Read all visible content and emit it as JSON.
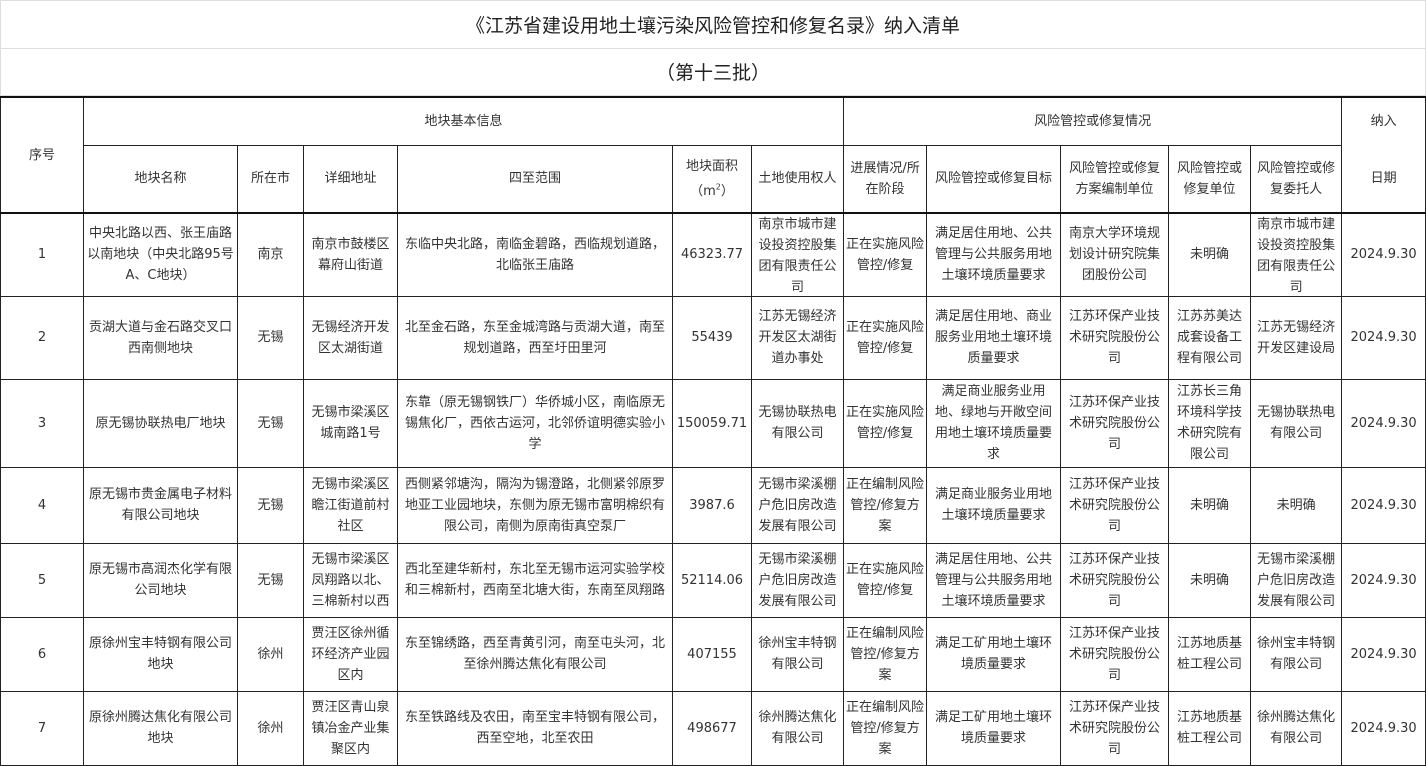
{
  "title": "《江苏省建设用地土壤污染风险管控和修复名录》纳入清单",
  "subtitle": "（第十三批）",
  "header": {
    "seq": "序号",
    "group_basic": "地块基本信息",
    "group_risk": "风险管控或修复情况",
    "include_top": "纳入",
    "include_bottom": "日期",
    "columns": [
      "地块名称",
      "所在市",
      "详细地址",
      "四至范围",
      "地块面积",
      "（m²）",
      "土地使用权人",
      "进展情况/所在阶段",
      "风险管控或修复目标",
      "风险管控或修复方案编制单位",
      "风险管控或修复单位",
      "风险管控或修复委托人"
    ]
  },
  "rows": [
    [
      "1",
      "中央北路以西、张王庙路以南地块（中央北路95号A、C地块）",
      "南京",
      "南京市鼓楼区幕府山街道",
      "东临中央北路，南临金碧路，西临规划道路，北临张王庙路",
      "46323.77",
      "南京市城市建设投资控股集团有限责任公司",
      "正在实施风险管控/修复",
      "满足居住用地、公共管理与公共服务用地土壤环境质量要求",
      "南京大学环境规划设计研究院集团股份公司",
      "未明确",
      "南京市城市建设投资控股集团有限责任公司",
      "2024.9.30"
    ],
    [
      "2",
      "贡湖大道与金石路交叉口西南侧地块",
      "无锡",
      "无锡经济开发区太湖街道",
      "北至金石路，东至金城湾路与贡湖大道，南至规划道路，西至圩田里河",
      "55439",
      "江苏无锡经济开发区太湖街道办事处",
      "正在实施风险管控/修复",
      "满足居住用地、商业服务业用地土壤环境质量要求",
      "江苏环保产业技术研究院股份公司",
      "江苏苏美达成套设备工程有限公司",
      "江苏无锡经济开发区建设局",
      "2024.9.30"
    ],
    [
      "3",
      "原无锡协联热电厂地块",
      "无锡",
      "无锡市梁溪区城南路1号",
      "东靠（原无锡钢铁厂）华侨城小区，南临原无锡焦化厂，西依古运河，北邻侨谊明德实验小学",
      "150059.71",
      "无锡协联热电有限公司",
      "正在实施风险管控/修复",
      "满足商业服务业用地、绿地与开敞空间用地土壤环境质量要求",
      "江苏环保产业技术研究院股份公司",
      "江苏长三角环境科学技术研究院有限公司",
      "无锡协联热电有限公司",
      "2024.9.30"
    ],
    [
      "4",
      "原无锡市贵金属电子材料有限公司地块",
      "无锡",
      "无锡市梁溪区瞻江街道前村社区",
      "西侧紧邻塘沟，隔沟为锡澄路，北侧紧邻原罗地亚工业园地块，东侧为原无锡市富明棉织有限公司，南侧为原南街真空泵厂",
      "3987.6",
      "无锡市梁溪棚户危旧房改造发展有限公司",
      "正在编制风险管控/修复方案",
      "满足商业服务业用地土壤环境质量要求",
      "江苏环保产业技术研究院股份公司",
      "未明确",
      "未明确",
      "2024.9.30"
    ],
    [
      "5",
      "原无锡市高润杰化学有限公司地块",
      "无锡",
      "无锡市梁溪区凤翔路以北、三棉新村以西",
      "西北至建华新村，东北至无锡市运河实验学校和三棉新村，西南至北塘大街，东南至凤翔路",
      "52114.06",
      "无锡市梁溪棚户危旧房改造发展有限公司",
      "正在实施风险管控/修复",
      "满足居住用地、公共管理与公共服务用地土壤环境质量要求",
      "江苏环保产业技术研究院股份公司",
      "未明确",
      "无锡市梁溪棚户危旧房改造发展有限公司",
      "2024.9.30"
    ],
    [
      "6",
      "原徐州宝丰特钢有限公司地块",
      "徐州",
      "贾汪区徐州循环经济产业园区内",
      "东至锦绣路，西至青黄引河，南至屯头河，北至徐州腾达焦化有限公司",
      "407155",
      "徐州宝丰特钢有限公司",
      "正在编制风险管控/修复方案",
      "满足工矿用地土壤环境质量要求",
      "江苏环保产业技术研究院股份公司",
      "江苏地质基桩工程公司",
      "徐州宝丰特钢有限公司",
      "2024.9.30"
    ],
    [
      "7",
      "原徐州腾达焦化有限公司地块",
      "徐州",
      "贾汪区青山泉镇冶金产业集聚区内",
      "东至铁路线及农田，南至宝丰特钢有限公司，西至空地，北至农田",
      "498677",
      "徐州腾达焦化有限公司",
      "正在编制风险管控/修复方案",
      "满足工矿用地土壤环境质量要求",
      "江苏环保产业技术研究院股份公司",
      "江苏地质基桩工程公司",
      "徐州腾达焦化有限公司",
      "2024.9.30"
    ]
  ]
}
